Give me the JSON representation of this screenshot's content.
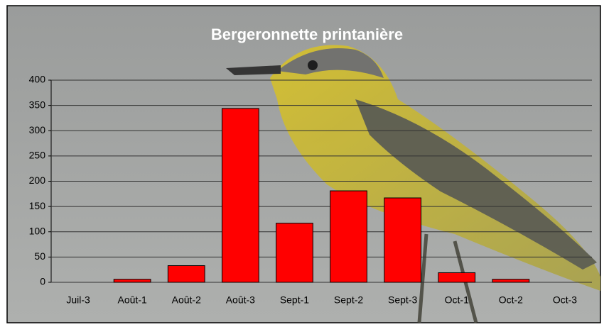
{
  "chart_data": {
    "type": "bar",
    "title": "Bergeronnette printanière",
    "categories": [
      "Juil-3",
      "Août-1",
      "Août-2",
      "Août-3",
      "Sept-1",
      "Sept-2",
      "Sept-3",
      "Oct-1",
      "Oct-2",
      "Oct-3"
    ],
    "values": [
      0,
      6,
      33,
      344,
      117,
      181,
      167,
      19,
      6,
      0
    ],
    "color": "#ff0000",
    "ylim": [
      0,
      400
    ],
    "yticks": [
      0,
      50,
      100,
      150,
      200,
      250,
      300,
      350,
      400
    ],
    "grid": true
  }
}
